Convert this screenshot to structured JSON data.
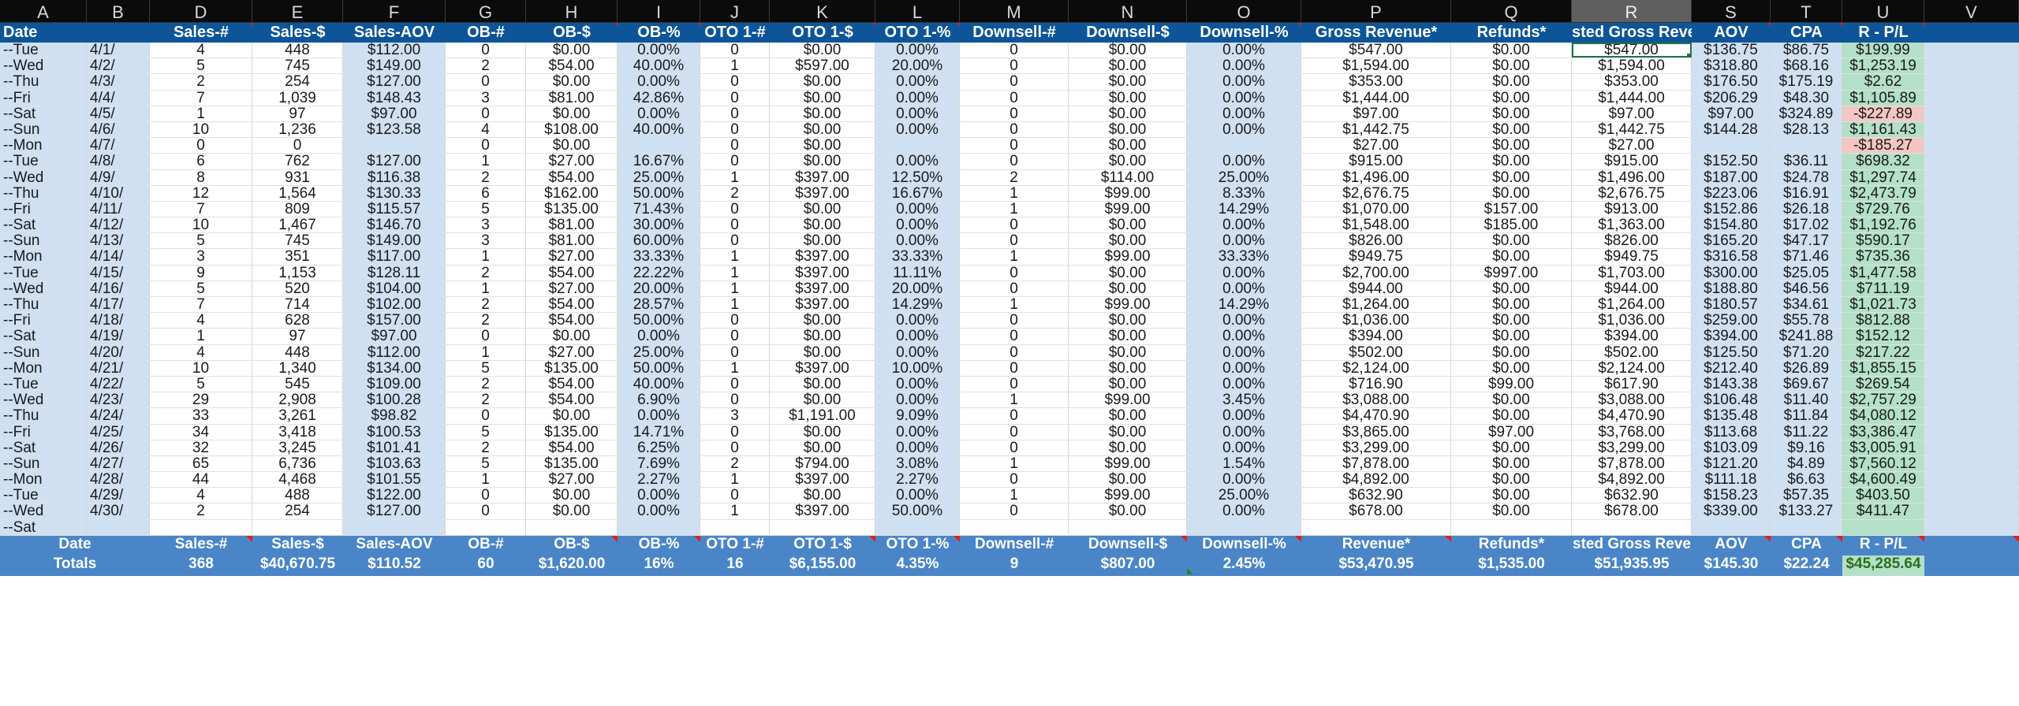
{
  "column_letters": [
    "A",
    "B",
    "D",
    "E",
    "F",
    "G",
    "H",
    "I",
    "J",
    "K",
    "L",
    "M",
    "N",
    "O",
    "P",
    "Q",
    "R",
    "S",
    "T",
    "U",
    "V"
  ],
  "active_column": "R",
  "header": {
    "date": "Date",
    "b": "",
    "sales_n": "Sales-#",
    "sales_d": "Sales-$",
    "sales_aov": "Sales-AOV",
    "ob_n": "OB-#",
    "ob_d": "OB-$",
    "ob_p": "OB-%",
    "oto_n": "OTO 1-#",
    "oto_d": "OTO 1-$",
    "oto_p": "OTO 1-%",
    "ds_n": "Downsell-#",
    "ds_d": "Downsell-$",
    "ds_p": "Downsell-%",
    "gross": "Gross Revenue*",
    "refunds": "Refunds*",
    "adj_gross": "sted Gross Reve",
    "aov": "AOV",
    "cpa": "CPA",
    "pl": "R - P/L",
    "v": ""
  },
  "rows": [
    {
      "day": "--Tue",
      "date": "4/1/",
      "sales_n": "4",
      "sales_d": "448",
      "sales_aov": "$112.00",
      "ob_n": "0",
      "ob_d": "$0.00",
      "ob_p": "0.00%",
      "oto_n": "0",
      "oto_d": "$0.00",
      "oto_p": "0.00%",
      "ds_n": "0",
      "ds_d": "$0.00",
      "ds_p": "0.00%",
      "gross": "$547.00",
      "refunds": "$0.00",
      "adj": "$547.00",
      "aov": "$136.75",
      "cpa": "$86.75",
      "pl": "$199.99",
      "pl_sign": "pos"
    },
    {
      "day": "--Wed",
      "date": "4/2/",
      "sales_n": "5",
      "sales_d": "745",
      "sales_aov": "$149.00",
      "ob_n": "2",
      "ob_d": "$54.00",
      "ob_p": "40.00%",
      "oto_n": "1",
      "oto_d": "$597.00",
      "oto_p": "20.00%",
      "ds_n": "0",
      "ds_d": "$0.00",
      "ds_p": "0.00%",
      "gross": "$1,594.00",
      "refunds": "$0.00",
      "adj": "$1,594.00",
      "aov": "$318.80",
      "cpa": "$68.16",
      "pl": "$1,253.19",
      "pl_sign": "pos"
    },
    {
      "day": "--Thu",
      "date": "4/3/",
      "sales_n": "2",
      "sales_d": "254",
      "sales_aov": "$127.00",
      "ob_n": "0",
      "ob_d": "$0.00",
      "ob_p": "0.00%",
      "oto_n": "0",
      "oto_d": "$0.00",
      "oto_p": "0.00%",
      "ds_n": "0",
      "ds_d": "$0.00",
      "ds_p": "0.00%",
      "gross": "$353.00",
      "refunds": "$0.00",
      "adj": "$353.00",
      "aov": "$176.50",
      "cpa": "$175.19",
      "pl": "$2.62",
      "pl_sign": "pos"
    },
    {
      "day": "--Fri",
      "date": "4/4/",
      "sales_n": "7",
      "sales_d": "1,039",
      "sales_aov": "$148.43",
      "ob_n": "3",
      "ob_d": "$81.00",
      "ob_p": "42.86%",
      "oto_n": "0",
      "oto_d": "$0.00",
      "oto_p": "0.00%",
      "ds_n": "0",
      "ds_d": "$0.00",
      "ds_p": "0.00%",
      "gross": "$1,444.00",
      "refunds": "$0.00",
      "adj": "$1,444.00",
      "aov": "$206.29",
      "cpa": "$48.30",
      "pl": "$1,105.89",
      "pl_sign": "pos"
    },
    {
      "day": "--Sat",
      "date": "4/5/",
      "sales_n": "1",
      "sales_d": "97",
      "sales_aov": "$97.00",
      "ob_n": "0",
      "ob_d": "$0.00",
      "ob_p": "0.00%",
      "oto_n": "0",
      "oto_d": "$0.00",
      "oto_p": "0.00%",
      "ds_n": "0",
      "ds_d": "$0.00",
      "ds_p": "0.00%",
      "gross": "$97.00",
      "refunds": "$0.00",
      "adj": "$97.00",
      "aov": "$97.00",
      "cpa": "$324.89",
      "pl": "-$227.89",
      "pl_sign": "neg"
    },
    {
      "day": "--Sun",
      "date": "4/6/",
      "sales_n": "10",
      "sales_d": "1,236",
      "sales_aov": "$123.58",
      "ob_n": "4",
      "ob_d": "$108.00",
      "ob_p": "40.00%",
      "oto_n": "0",
      "oto_d": "$0.00",
      "oto_p": "0.00%",
      "ds_n": "0",
      "ds_d": "$0.00",
      "ds_p": "0.00%",
      "gross": "$1,442.75",
      "refunds": "$0.00",
      "adj": "$1,442.75",
      "aov": "$144.28",
      "cpa": "$28.13",
      "pl": "$1,161.43",
      "pl_sign": "pos"
    },
    {
      "day": "--Mon",
      "date": "4/7/",
      "sales_n": "0",
      "sales_d": "0",
      "sales_aov": "",
      "ob_n": "0",
      "ob_d": "$0.00",
      "ob_p": "",
      "oto_n": "0",
      "oto_d": "$0.00",
      "oto_p": "",
      "ds_n": "0",
      "ds_d": "$0.00",
      "ds_p": "",
      "gross": "$27.00",
      "refunds": "$0.00",
      "adj": "$27.00",
      "aov": "",
      "cpa": "",
      "pl": "-$185.27",
      "pl_sign": "neg"
    },
    {
      "day": "--Tue",
      "date": "4/8/",
      "sales_n": "6",
      "sales_d": "762",
      "sales_aov": "$127.00",
      "ob_n": "1",
      "ob_d": "$27.00",
      "ob_p": "16.67%",
      "oto_n": "0",
      "oto_d": "$0.00",
      "oto_p": "0.00%",
      "ds_n": "0",
      "ds_d": "$0.00",
      "ds_p": "0.00%",
      "gross": "$915.00",
      "refunds": "$0.00",
      "adj": "$915.00",
      "aov": "$152.50",
      "cpa": "$36.11",
      "pl": "$698.32",
      "pl_sign": "pos"
    },
    {
      "day": "--Wed",
      "date": "4/9/",
      "sales_n": "8",
      "sales_d": "931",
      "sales_aov": "$116.38",
      "ob_n": "2",
      "ob_d": "$54.00",
      "ob_p": "25.00%",
      "oto_n": "1",
      "oto_d": "$397.00",
      "oto_p": "12.50%",
      "ds_n": "2",
      "ds_d": "$114.00",
      "ds_p": "25.00%",
      "gross": "$1,496.00",
      "refunds": "$0.00",
      "adj": "$1,496.00",
      "aov": "$187.00",
      "cpa": "$24.78",
      "pl": "$1,297.74",
      "pl_sign": "pos"
    },
    {
      "day": "--Thu",
      "date": "4/10/",
      "sales_n": "12",
      "sales_d": "1,564",
      "sales_aov": "$130.33",
      "ob_n": "6",
      "ob_d": "$162.00",
      "ob_p": "50.00%",
      "oto_n": "2",
      "oto_d": "$397.00",
      "oto_p": "16.67%",
      "ds_n": "1",
      "ds_d": "$99.00",
      "ds_p": "8.33%",
      "gross": "$2,676.75",
      "refunds": "$0.00",
      "adj": "$2,676.75",
      "aov": "$223.06",
      "cpa": "$16.91",
      "pl": "$2,473.79",
      "pl_sign": "pos"
    },
    {
      "day": "--Fri",
      "date": "4/11/",
      "sales_n": "7",
      "sales_d": "809",
      "sales_aov": "$115.57",
      "ob_n": "5",
      "ob_d": "$135.00",
      "ob_p": "71.43%",
      "oto_n": "0",
      "oto_d": "$0.00",
      "oto_p": "0.00%",
      "ds_n": "1",
      "ds_d": "$99.00",
      "ds_p": "14.29%",
      "gross": "$1,070.00",
      "refunds": "$157.00",
      "adj": "$913.00",
      "aov": "$152.86",
      "cpa": "$26.18",
      "pl": "$729.76",
      "pl_sign": "pos"
    },
    {
      "day": "--Sat",
      "date": "4/12/",
      "sales_n": "10",
      "sales_d": "1,467",
      "sales_aov": "$146.70",
      "ob_n": "3",
      "ob_d": "$81.00",
      "ob_p": "30.00%",
      "oto_n": "0",
      "oto_d": "$0.00",
      "oto_p": "0.00%",
      "ds_n": "0",
      "ds_d": "$0.00",
      "ds_p": "0.00%",
      "gross": "$1,548.00",
      "refunds": "$185.00",
      "adj": "$1,363.00",
      "aov": "$154.80",
      "cpa": "$17.02",
      "pl": "$1,192.76",
      "pl_sign": "pos"
    },
    {
      "day": "--Sun",
      "date": "4/13/",
      "sales_n": "5",
      "sales_d": "745",
      "sales_aov": "$149.00",
      "ob_n": "3",
      "ob_d": "$81.00",
      "ob_p": "60.00%",
      "oto_n": "0",
      "oto_d": "$0.00",
      "oto_p": "0.00%",
      "ds_n": "0",
      "ds_d": "$0.00",
      "ds_p": "0.00%",
      "gross": "$826.00",
      "refunds": "$0.00",
      "adj": "$826.00",
      "aov": "$165.20",
      "cpa": "$47.17",
      "pl": "$590.17",
      "pl_sign": "pos"
    },
    {
      "day": "--Mon",
      "date": "4/14/",
      "sales_n": "3",
      "sales_d": "351",
      "sales_aov": "$117.00",
      "ob_n": "1",
      "ob_d": "$27.00",
      "ob_p": "33.33%",
      "oto_n": "1",
      "oto_d": "$397.00",
      "oto_p": "33.33%",
      "ds_n": "1",
      "ds_d": "$99.00",
      "ds_p": "33.33%",
      "gross": "$949.75",
      "refunds": "$0.00",
      "adj": "$949.75",
      "aov": "$316.58",
      "cpa": "$71.46",
      "pl": "$735.36",
      "pl_sign": "pos"
    },
    {
      "day": "--Tue",
      "date": "4/15/",
      "sales_n": "9",
      "sales_d": "1,153",
      "sales_aov": "$128.11",
      "ob_n": "2",
      "ob_d": "$54.00",
      "ob_p": "22.22%",
      "oto_n": "1",
      "oto_d": "$397.00",
      "oto_p": "11.11%",
      "ds_n": "0",
      "ds_d": "$0.00",
      "ds_p": "0.00%",
      "gross": "$2,700.00",
      "refunds": "$997.00",
      "adj": "$1,703.00",
      "aov": "$300.00",
      "cpa": "$25.05",
      "pl": "$1,477.58",
      "pl_sign": "pos"
    },
    {
      "day": "--Wed",
      "date": "4/16/",
      "sales_n": "5",
      "sales_d": "520",
      "sales_aov": "$104.00",
      "ob_n": "1",
      "ob_d": "$27.00",
      "ob_p": "20.00%",
      "oto_n": "1",
      "oto_d": "$397.00",
      "oto_p": "20.00%",
      "ds_n": "0",
      "ds_d": "$0.00",
      "ds_p": "0.00%",
      "gross": "$944.00",
      "refunds": "$0.00",
      "adj": "$944.00",
      "aov": "$188.80",
      "cpa": "$46.56",
      "pl": "$711.19",
      "pl_sign": "pos"
    },
    {
      "day": "--Thu",
      "date": "4/17/",
      "sales_n": "7",
      "sales_d": "714",
      "sales_aov": "$102.00",
      "ob_n": "2",
      "ob_d": "$54.00",
      "ob_p": "28.57%",
      "oto_n": "1",
      "oto_d": "$397.00",
      "oto_p": "14.29%",
      "ds_n": "1",
      "ds_d": "$99.00",
      "ds_p": "14.29%",
      "gross": "$1,264.00",
      "refunds": "$0.00",
      "adj": "$1,264.00",
      "aov": "$180.57",
      "cpa": "$34.61",
      "pl": "$1,021.73",
      "pl_sign": "pos"
    },
    {
      "day": "--Fri",
      "date": "4/18/",
      "sales_n": "4",
      "sales_d": "628",
      "sales_aov": "$157.00",
      "ob_n": "2",
      "ob_d": "$54.00",
      "ob_p": "50.00%",
      "oto_n": "0",
      "oto_d": "$0.00",
      "oto_p": "0.00%",
      "ds_n": "0",
      "ds_d": "$0.00",
      "ds_p": "0.00%",
      "gross": "$1,036.00",
      "refunds": "$0.00",
      "adj": "$1,036.00",
      "aov": "$259.00",
      "cpa": "$55.78",
      "pl": "$812.88",
      "pl_sign": "pos"
    },
    {
      "day": "--Sat",
      "date": "4/19/",
      "sales_n": "1",
      "sales_d": "97",
      "sales_aov": "$97.00",
      "ob_n": "0",
      "ob_d": "$0.00",
      "ob_p": "0.00%",
      "oto_n": "0",
      "oto_d": "$0.00",
      "oto_p": "0.00%",
      "ds_n": "0",
      "ds_d": "$0.00",
      "ds_p": "0.00%",
      "gross": "$394.00",
      "refunds": "$0.00",
      "adj": "$394.00",
      "aov": "$394.00",
      "cpa": "$241.88",
      "pl": "$152.12",
      "pl_sign": "pos"
    },
    {
      "day": "--Sun",
      "date": "4/20/",
      "sales_n": "4",
      "sales_d": "448",
      "sales_aov": "$112.00",
      "ob_n": "1",
      "ob_d": "$27.00",
      "ob_p": "25.00%",
      "oto_n": "0",
      "oto_d": "$0.00",
      "oto_p": "0.00%",
      "ds_n": "0",
      "ds_d": "$0.00",
      "ds_p": "0.00%",
      "gross": "$502.00",
      "refunds": "$0.00",
      "adj": "$502.00",
      "aov": "$125.50",
      "cpa": "$71.20",
      "pl": "$217.22",
      "pl_sign": "pos"
    },
    {
      "day": "--Mon",
      "date": "4/21/",
      "sales_n": "10",
      "sales_d": "1,340",
      "sales_aov": "$134.00",
      "ob_n": "5",
      "ob_d": "$135.00",
      "ob_p": "50.00%",
      "oto_n": "1",
      "oto_d": "$397.00",
      "oto_p": "10.00%",
      "ds_n": "0",
      "ds_d": "$0.00",
      "ds_p": "0.00%",
      "gross": "$2,124.00",
      "refunds": "$0.00",
      "adj": "$2,124.00",
      "aov": "$212.40",
      "cpa": "$26.89",
      "pl": "$1,855.15",
      "pl_sign": "pos"
    },
    {
      "day": "--Tue",
      "date": "4/22/",
      "sales_n": "5",
      "sales_d": "545",
      "sales_aov": "$109.00",
      "ob_n": "2",
      "ob_d": "$54.00",
      "ob_p": "40.00%",
      "oto_n": "0",
      "oto_d": "$0.00",
      "oto_p": "0.00%",
      "ds_n": "0",
      "ds_d": "$0.00",
      "ds_p": "0.00%",
      "gross": "$716.90",
      "refunds": "$99.00",
      "adj": "$617.90",
      "aov": "$143.38",
      "cpa": "$69.67",
      "pl": "$269.54",
      "pl_sign": "pos"
    },
    {
      "day": "--Wed",
      "date": "4/23/",
      "sales_n": "29",
      "sales_d": "2,908",
      "sales_aov": "$100.28",
      "ob_n": "2",
      "ob_d": "$54.00",
      "ob_p": "6.90%",
      "oto_n": "0",
      "oto_d": "$0.00",
      "oto_p": "0.00%",
      "ds_n": "1",
      "ds_d": "$99.00",
      "ds_p": "3.45%",
      "gross": "$3,088.00",
      "refunds": "$0.00",
      "adj": "$3,088.00",
      "aov": "$106.48",
      "cpa": "$11.40",
      "pl": "$2,757.29",
      "pl_sign": "pos"
    },
    {
      "day": "--Thu",
      "date": "4/24/",
      "sales_n": "33",
      "sales_d": "3,261",
      "sales_aov": "$98.82",
      "ob_n": "0",
      "ob_d": "$0.00",
      "ob_p": "0.00%",
      "oto_n": "3",
      "oto_d": "$1,191.00",
      "oto_p": "9.09%",
      "ds_n": "0",
      "ds_d": "$0.00",
      "ds_p": "0.00%",
      "gross": "$4,470.90",
      "refunds": "$0.00",
      "adj": "$4,470.90",
      "aov": "$135.48",
      "cpa": "$11.84",
      "pl": "$4,080.12",
      "pl_sign": "pos"
    },
    {
      "day": "--Fri",
      "date": "4/25/",
      "sales_n": "34",
      "sales_d": "3,418",
      "sales_aov": "$100.53",
      "ob_n": "5",
      "ob_d": "$135.00",
      "ob_p": "14.71%",
      "oto_n": "0",
      "oto_d": "$0.00",
      "oto_p": "0.00%",
      "ds_n": "0",
      "ds_d": "$0.00",
      "ds_p": "0.00%",
      "gross": "$3,865.00",
      "refunds": "$97.00",
      "adj": "$3,768.00",
      "aov": "$113.68",
      "cpa": "$11.22",
      "pl": "$3,386.47",
      "pl_sign": "pos"
    },
    {
      "day": "--Sat",
      "date": "4/26/",
      "sales_n": "32",
      "sales_d": "3,245",
      "sales_aov": "$101.41",
      "ob_n": "2",
      "ob_d": "$54.00",
      "ob_p": "6.25%",
      "oto_n": "0",
      "oto_d": "$0.00",
      "oto_p": "0.00%",
      "ds_n": "0",
      "ds_d": "$0.00",
      "ds_p": "0.00%",
      "gross": "$3,299.00",
      "refunds": "$0.00",
      "adj": "$3,299.00",
      "aov": "$103.09",
      "cpa": "$9.16",
      "pl": "$3,005.91",
      "pl_sign": "pos"
    },
    {
      "day": "--Sun",
      "date": "4/27/",
      "sales_n": "65",
      "sales_d": "6,736",
      "sales_aov": "$103.63",
      "ob_n": "5",
      "ob_d": "$135.00",
      "ob_p": "7.69%",
      "oto_n": "2",
      "oto_d": "$794.00",
      "oto_p": "3.08%",
      "ds_n": "1",
      "ds_d": "$99.00",
      "ds_p": "1.54%",
      "gross": "$7,878.00",
      "refunds": "$0.00",
      "adj": "$7,878.00",
      "aov": "$121.20",
      "cpa": "$4.89",
      "pl": "$7,560.12",
      "pl_sign": "pos"
    },
    {
      "day": "--Mon",
      "date": "4/28/",
      "sales_n": "44",
      "sales_d": "4,468",
      "sales_aov": "$101.55",
      "ob_n": "1",
      "ob_d": "$27.00",
      "ob_p": "2.27%",
      "oto_n": "1",
      "oto_d": "$397.00",
      "oto_p": "2.27%",
      "ds_n": "0",
      "ds_d": "$0.00",
      "ds_p": "0.00%",
      "gross": "$4,892.00",
      "refunds": "$0.00",
      "adj": "$4,892.00",
      "aov": "$111.18",
      "cpa": "$6.63",
      "pl": "$4,600.49",
      "pl_sign": "pos"
    },
    {
      "day": "--Tue",
      "date": "4/29/",
      "sales_n": "4",
      "sales_d": "488",
      "sales_aov": "$122.00",
      "ob_n": "0",
      "ob_d": "$0.00",
      "ob_p": "0.00%",
      "oto_n": "0",
      "oto_d": "$0.00",
      "oto_p": "0.00%",
      "ds_n": "1",
      "ds_d": "$99.00",
      "ds_p": "25.00%",
      "gross": "$632.90",
      "refunds": "$0.00",
      "adj": "$632.90",
      "aov": "$158.23",
      "cpa": "$57.35",
      "pl": "$403.50",
      "pl_sign": "pos"
    },
    {
      "day": "--Wed",
      "date": "4/30/",
      "sales_n": "2",
      "sales_d": "254",
      "sales_aov": "$127.00",
      "ob_n": "0",
      "ob_d": "$0.00",
      "ob_p": "0.00%",
      "oto_n": "1",
      "oto_d": "$397.00",
      "oto_p": "50.00%",
      "ds_n": "0",
      "ds_d": "$0.00",
      "ds_p": "0.00%",
      "gross": "$678.00",
      "refunds": "$0.00",
      "adj": "$678.00",
      "aov": "$339.00",
      "cpa": "$133.27",
      "pl": "$411.47",
      "pl_sign": "pos"
    },
    {
      "day": "--Sat",
      "date": "",
      "sales_n": "",
      "sales_d": "",
      "sales_aov": "",
      "ob_n": "",
      "ob_d": "",
      "ob_p": "",
      "oto_n": "",
      "oto_d": "",
      "oto_p": "",
      "ds_n": "",
      "ds_d": "",
      "ds_p": "",
      "gross": "",
      "refunds": "",
      "adj": "",
      "aov": "",
      "cpa": "",
      "pl": "",
      "pl_sign": "pos"
    }
  ],
  "footer": {
    "labels": {
      "date": "Date",
      "sales_n": "Sales-#",
      "sales_d": "Sales-$",
      "sales_aov": "Sales-AOV",
      "ob_n": "OB-#",
      "ob_d": "OB-$",
      "ob_p": "OB-%",
      "oto_n": "OTO 1-#",
      "oto_d": "OTO 1-$",
      "oto_p": "OTO 1-%",
      "ds_n": "Downsell-#",
      "ds_d": "Downsell-$",
      "ds_p": "Downsell-%",
      "gross": "Revenue*",
      "refunds": "Refunds*",
      "adj": "sted Gross Reve",
      "aov": "AOV",
      "cpa": "CPA",
      "pl": "R - P/L"
    },
    "totals": {
      "date": "Totals",
      "sales_n": "368",
      "sales_d": "$40,670.75",
      "sales_aov": "$110.52",
      "ob_n": "60",
      "ob_d": "$1,620.00",
      "ob_p": "16%",
      "oto_n": "16",
      "oto_d": "$6,155.00",
      "oto_p": "4.35%",
      "ds_n": "9",
      "ds_d": "$807.00",
      "ds_p": "2.45%",
      "gross": "$53,470.95",
      "refunds": "$1,535.00",
      "adj": "$51,935.95",
      "aov": "$145.30",
      "cpa": "$22.24",
      "pl": "$45,285.64"
    }
  },
  "colors": {
    "header_blue": "#0d5598",
    "footer_blue": "#4a85c8",
    "light_blue_col": "#cfe0f2",
    "profit_green": "#b3e0c7",
    "loss_red": "#f3c6c3",
    "selection_green": "#217346"
  }
}
